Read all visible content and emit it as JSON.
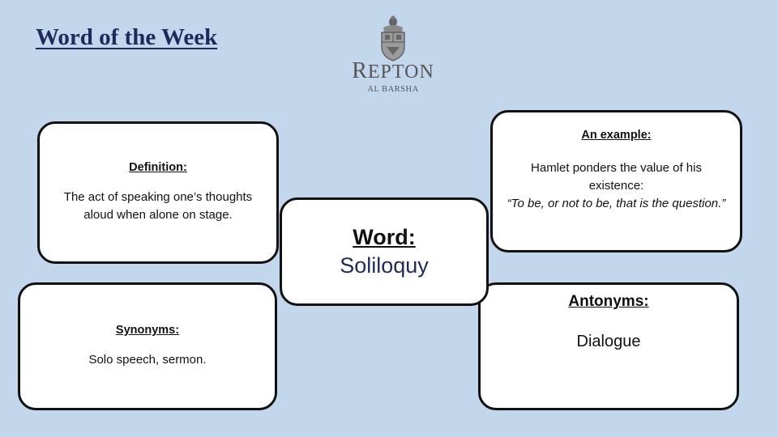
{
  "title": "Word of the Week",
  "logo": {
    "name_first": "R",
    "name_rest": "EPTON",
    "subtitle": "AL BARSHA",
    "icon": "school-crest-icon"
  },
  "word_card": {
    "label": "Word:",
    "value": "Soliloquy"
  },
  "definition_card": {
    "heading": "Definition:",
    "text": "The act of speaking one’s thoughts aloud when alone on stage."
  },
  "example_card": {
    "heading": "An example:",
    "text": "Hamlet ponders the value of his existence:",
    "quote": "“To be, or not to be, that is the question.”"
  },
  "synonyms_card": {
    "heading": "Synonyms:",
    "text": "Solo speech, sermon."
  },
  "antonyms_card": {
    "heading": "Antonyms:",
    "text": "Dialogue"
  },
  "colors": {
    "background": "#c3d7ec",
    "title": "#1f2a5c",
    "word": "#1f2a5c"
  }
}
